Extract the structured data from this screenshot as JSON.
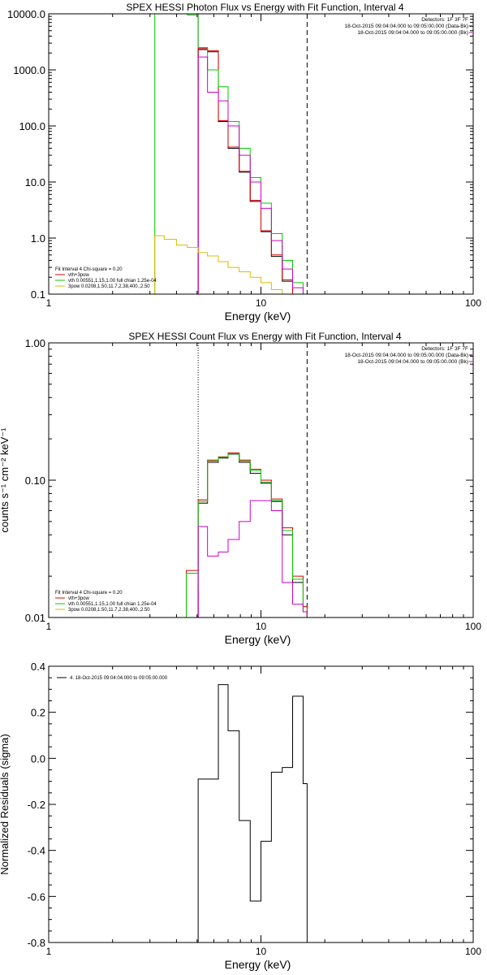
{
  "chart_data": [
    {
      "type": "line",
      "title": "SPEX HESSI Photon Flux vs Energy with Fit Function, Interval 4",
      "xlabel": "Energy (keV)",
      "ylabel": "",
      "xscale": "log",
      "yscale": "log",
      "xlim": [
        1,
        100
      ],
      "ylim": [
        0.1,
        10000
      ],
      "x_ticks": [
        {
          "v": 1,
          "label": "1"
        },
        {
          "v": 10,
          "label": "10"
        },
        {
          "v": 100,
          "label": "100"
        }
      ],
      "y_ticks": [
        {
          "v": 0.1,
          "label": "0.1"
        },
        {
          "v": 1,
          "label": "1.0"
        },
        {
          "v": 10,
          "label": "10.0"
        },
        {
          "v": 100,
          "label": "100.0"
        },
        {
          "v": 1000,
          "label": "1000.0"
        },
        {
          "v": 10000,
          "label": "10000.0"
        }
      ],
      "vlines": [
        {
          "x": 5.06,
          "style": "solid",
          "color": "#cc00cc"
        },
        {
          "x": 16.5,
          "style": "dashed",
          "color": "#000000"
        }
      ],
      "legend_top_right": [
        {
          "text": "Detectors: 1F 3F 7F",
          "color": "#000000",
          "swatch": false
        },
        {
          "text": "18-Oct-2015 09:04:04.000 to 09:05:00.000 (Data-Bk)",
          "color": "#000000",
          "swatch": true
        },
        {
          "text": "18-Oct-2015 09:04:04.000 to 09:05:00.000 (Bk)",
          "color": "#cc00cc",
          "swatch": true
        }
      ],
      "legend_bottom_left": [
        {
          "text": "Fit Interval 4   Chi-square = 0.20",
          "color": "#000000",
          "swatch": false
        },
        {
          "text": "vth+3pow",
          "color": "#dd0000",
          "swatch": true
        },
        {
          "text": "vth 0.00551,1.15,1.00  full chian 1.25e-04",
          "color": "#00cc00",
          "swatch": true
        },
        {
          "text": "3pow 0.0208,1.50,11.7,2.38,400.,2.50",
          "color": "#ddbb00",
          "swatch": true
        }
      ],
      "edges": [
        3.16,
        3.5,
        4.0,
        4.5,
        5.06,
        5.6,
        6.3,
        7.0,
        7.9,
        8.9,
        10.0,
        11.2,
        12.6,
        14.1,
        15.8,
        16.5
      ],
      "series": [
        {
          "name": "data-bk",
          "color": "#000000",
          "x0": 5.06,
          "values": [
            2300,
            2100,
            120,
            40,
            15,
            4.5,
            1.3,
            0.47,
            0.17
          ]
        },
        {
          "name": "vth+3pow",
          "color": "#dd0000",
          "x0": 5.06,
          "values": [
            2400,
            2200,
            125,
            42,
            15.5,
            4.7,
            1.35,
            0.5,
            0.18
          ]
        },
        {
          "name": "vth",
          "color": "#00cc00",
          "x0": 3.16,
          "values": [
            10000,
            10000,
            10000,
            9500,
            2500,
            1000,
            500,
            120,
            40,
            12,
            4.2,
            1.2,
            0.4,
            0.16
          ]
        },
        {
          "name": "bk",
          "color": "#cc00cc",
          "x0": 5.06,
          "values": [
            1700,
            400,
            280,
            100,
            30,
            10,
            3.4,
            0.9,
            0.28,
            0.13
          ]
        },
        {
          "name": "3pow",
          "color": "#ddbb00",
          "x0": 3.16,
          "values": [
            1.1,
            0.95,
            0.75,
            0.68,
            0.55,
            0.48,
            0.38,
            0.3,
            0.25,
            0.2,
            0.16,
            0.12,
            0.1,
            0.1
          ]
        }
      ]
    },
    {
      "type": "line",
      "title": "SPEX HESSI Count Flux vs Energy with Fit Function, Interval 4",
      "xlabel": "Energy (keV)",
      "ylabel": "counts s⁻¹ cm⁻² keV⁻¹",
      "xscale": "log",
      "yscale": "log",
      "xlim": [
        1,
        100
      ],
      "ylim": [
        0.01,
        1.0
      ],
      "x_ticks": [
        {
          "v": 1,
          "label": "1"
        },
        {
          "v": 10,
          "label": "10"
        },
        {
          "v": 100,
          "label": "100"
        }
      ],
      "y_ticks": [
        {
          "v": 0.01,
          "label": "0.01"
        },
        {
          "v": 0.1,
          "label": "0.10"
        },
        {
          "v": 1,
          "label": "1.00"
        }
      ],
      "vlines": [
        {
          "x": 5.06,
          "style": "dotted",
          "color": "#000000"
        },
        {
          "x": 5.06,
          "style": "solid",
          "color": "#cc00cc",
          "partial_top": 0.016
        },
        {
          "x": 16.5,
          "style": "dashed",
          "color": "#000000"
        }
      ],
      "legend_top_right": [
        {
          "text": "Detectors: 1F 3F 7F",
          "color": "#000000",
          "swatch": false
        },
        {
          "text": "18-Oct-2015 09:04:04.000 to 09:05:00.000 (Data-Bk)",
          "color": "#000000",
          "swatch": true
        },
        {
          "text": "18-Oct-2015 09:04:04.000 to 09:05:00.000 (Bk)",
          "color": "#cc00cc",
          "swatch": true
        }
      ],
      "legend_bottom_left": [
        {
          "text": "Fit Interval 4   Chi-square = 0.20",
          "color": "#000000",
          "swatch": false
        },
        {
          "text": "vth+3pow",
          "color": "#dd0000",
          "swatch": true
        },
        {
          "text": "vth 0.00551,1.15,1.00  full chian 1.25e-04",
          "color": "#00cc00",
          "swatch": true
        },
        {
          "text": "3pow 0.0208,1.50,11.7,2.38,400.,2.50",
          "color": "#ddbb00",
          "swatch": true
        }
      ],
      "edges": [
        4.45,
        5.06,
        5.6,
        6.3,
        7.0,
        7.9,
        8.9,
        10.0,
        11.2,
        12.6,
        14.1,
        15.8,
        16.5
      ],
      "series": [
        {
          "name": "data-bk",
          "color": "#000000",
          "x0": 5.06,
          "values": [
            0.068,
            0.135,
            0.145,
            0.155,
            0.135,
            0.112,
            0.095,
            0.07,
            0.04,
            0.018,
            0.011
          ]
        },
        {
          "name": "vth+3pow",
          "color": "#dd0000",
          "x0": 4.45,
          "values": [
            0.022,
            0.072,
            0.14,
            0.148,
            0.158,
            0.14,
            0.12,
            0.1,
            0.073,
            0.045,
            0.02,
            0.012
          ]
        },
        {
          "name": "vth",
          "color": "#00cc00",
          "x0": 4.45,
          "values": [
            0.021,
            0.07,
            0.138,
            0.147,
            0.156,
            0.138,
            0.118,
            0.097,
            0.071,
            0.043,
            0.019,
            0.011
          ]
        },
        {
          "name": "bk",
          "color": "#cc00cc",
          "x0": 5.06,
          "values": [
            0.046,
            0.028,
            0.03,
            0.037,
            0.05,
            0.071,
            0.071,
            0.06,
            0.018,
            0.0125,
            0.011
          ]
        }
      ]
    },
    {
      "type": "line",
      "title": "",
      "xlabel": "Energy (keV)",
      "ylabel": "Normalized Residuals (sigma)",
      "xscale": "log",
      "yscale": "linear",
      "xlim": [
        1,
        100
      ],
      "ylim": [
        -0.8,
        0.4
      ],
      "x_ticks": [
        {
          "v": 1,
          "label": "1"
        },
        {
          "v": 10,
          "label": "10"
        },
        {
          "v": 100,
          "label": "100"
        }
      ],
      "y_ticks": [
        {
          "v": -0.8,
          "label": "-0.8"
        },
        {
          "v": -0.6,
          "label": "-0.6"
        },
        {
          "v": -0.4,
          "label": "-0.4"
        },
        {
          "v": -0.2,
          "label": "-0.2"
        },
        {
          "v": 0.0,
          "label": "0.0"
        },
        {
          "v": 0.2,
          "label": "0.2"
        },
        {
          "v": 0.4,
          "label": "0.4"
        }
      ],
      "vlines": [],
      "legend_top_left": [
        {
          "text": "4. 18-Oct-2015 09:04:04.000 to 09:05:00.000",
          "color": "#000000",
          "swatch": true
        }
      ],
      "edges": [
        5.06,
        6.3,
        7.0,
        7.9,
        8.9,
        10.0,
        11.2,
        12.6,
        14.1,
        15.8,
        16.5
      ],
      "series": [
        {
          "name": "residuals",
          "color": "#000000",
          "x0": 5.06,
          "values": [
            -0.09,
            0.32,
            0.12,
            -0.27,
            -0.62,
            -0.36,
            -0.06,
            -0.04,
            0.27,
            -0.11
          ]
        }
      ]
    }
  ]
}
